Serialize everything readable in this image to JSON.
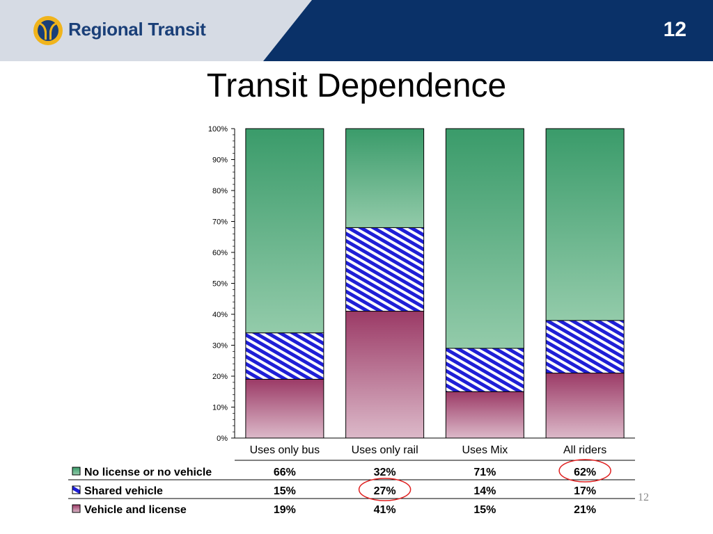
{
  "header": {
    "logo_text": "Regional Transit",
    "page_number": "12",
    "colors": {
      "navy": "#0a3168",
      "light_band": "#d6dbe4",
      "logo_gold": "#f0b41c"
    }
  },
  "slide": {
    "title": "Transit Dependence",
    "footer_page": "12"
  },
  "chart_data": {
    "type": "bar",
    "stacked": true,
    "percent_stacked": true,
    "categories": [
      "Uses only bus",
      "Uses only rail",
      "Uses Mix",
      "All riders"
    ],
    "y_ticks": [
      "0%",
      "10%",
      "20%",
      "30%",
      "40%",
      "50%",
      "60%",
      "70%",
      "80%",
      "90%",
      "100%"
    ],
    "ylim": [
      0,
      100
    ],
    "series": [
      {
        "name": "Vehicle and license",
        "values": [
          19,
          41,
          15,
          21
        ],
        "labels": [
          "19%",
          "41%",
          "15%",
          "21%"
        ],
        "color": "#9b3a66",
        "pattern": "gradient"
      },
      {
        "name": "Shared vehicle",
        "values": [
          15,
          27,
          14,
          17
        ],
        "labels": [
          "15%",
          "27%",
          "14%",
          "17%"
        ],
        "color": "#1f1fd6",
        "pattern": "hatch"
      },
      {
        "name": "No license or no vehicle",
        "values": [
          66,
          32,
          71,
          62
        ],
        "labels": [
          "66%",
          "32%",
          "71%",
          "62%"
        ],
        "color": "#3a9b6a",
        "pattern": "gradient"
      }
    ],
    "table_row_order": [
      "No license or no vehicle",
      "Shared vehicle",
      "Vehicle and license"
    ],
    "annotations": [
      {
        "type": "circle",
        "series": "No license or no vehicle",
        "category": "All riders",
        "color": "#e02020"
      },
      {
        "type": "circle",
        "series": "Shared vehicle",
        "category": "Uses only rail",
        "color": "#e02020"
      }
    ],
    "grid": false,
    "legend": "data-table"
  }
}
